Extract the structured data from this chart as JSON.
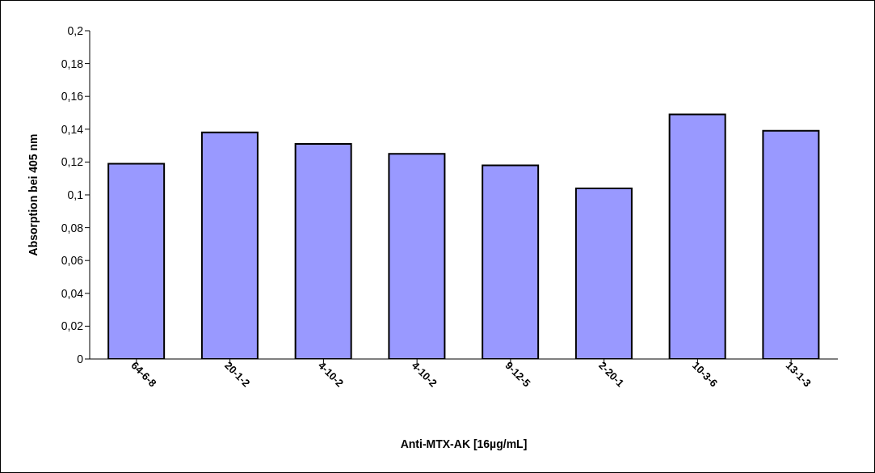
{
  "chart_data": {
    "type": "bar",
    "xlabel": "Anti-MTX-AK [16µg/mL]",
    "ylabel": "Absorption bei 405 nm",
    "categories": [
      "64-6-8",
      "20-1-2",
      "4-10-2",
      "4-10-2",
      "9-12-5",
      "2-20-1",
      "10-3-6",
      "13-1-3"
    ],
    "values": [
      0.119,
      0.138,
      0.131,
      0.125,
      0.118,
      0.104,
      0.149,
      0.139
    ],
    "color": "#9999ff",
    "ylim": [
      0,
      0.2
    ],
    "yticks": [
      {
        "value": 0,
        "label": "0"
      },
      {
        "value": 0.02,
        "label": "0,02"
      },
      {
        "value": 0.04,
        "label": "0,04"
      },
      {
        "value": 0.06,
        "label": "0,06"
      },
      {
        "value": 0.08,
        "label": "0,08"
      },
      {
        "value": 0.1,
        "label": "0,1"
      },
      {
        "value": 0.12,
        "label": "0,12"
      },
      {
        "value": 0.14,
        "label": "0,14"
      },
      {
        "value": 0.16,
        "label": "0,16"
      },
      {
        "value": 0.18,
        "label": "0,18"
      },
      {
        "value": 0.2,
        "label": "0,2"
      }
    ],
    "grid": false,
    "legend": false
  }
}
